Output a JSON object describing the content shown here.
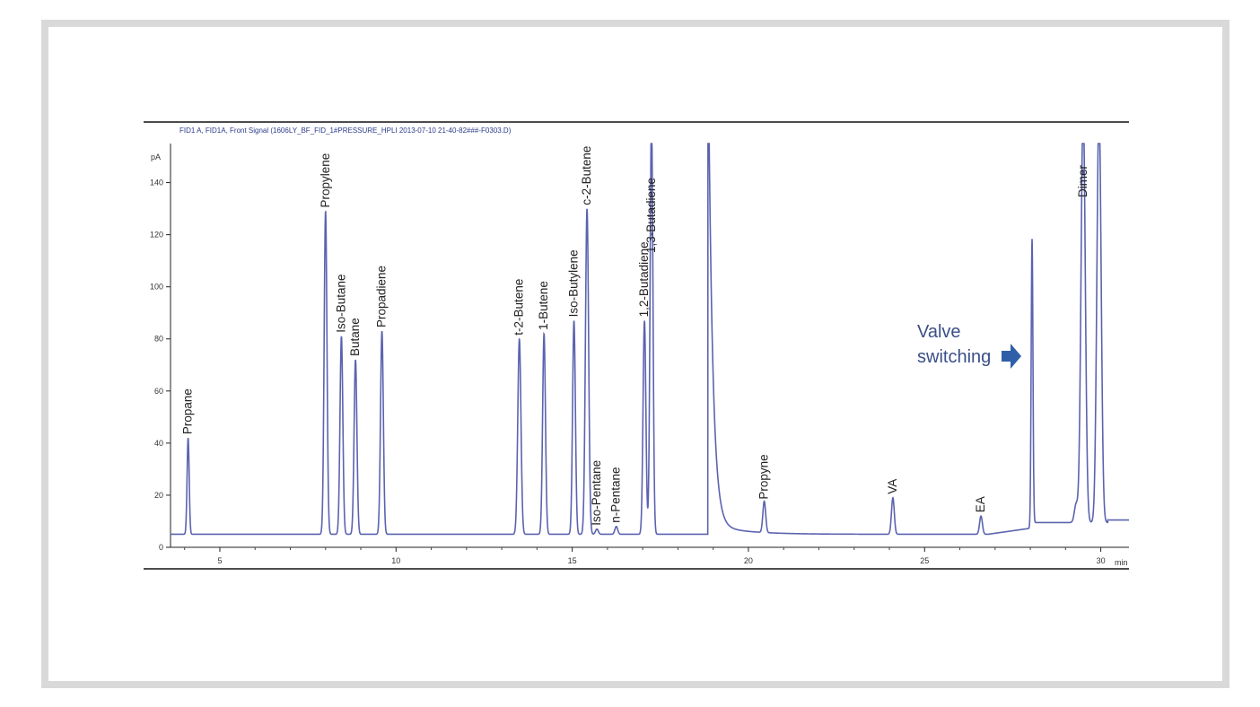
{
  "chart_data": {
    "type": "line",
    "header": "FID1 A, FID1A, Front Signal (1606LY_BF_FID_1#PRESSURE_HPLI 2013-07-10 21-40-82###-F0303.D)",
    "ylabel": "pA",
    "xlabel": "min",
    "xlim": [
      3.6,
      30.8
    ],
    "ylim": [
      0,
      155
    ],
    "x_ticks": [
      5,
      10,
      15,
      20,
      25,
      30
    ],
    "y_ticks": [
      0,
      20,
      40,
      60,
      80,
      100,
      120,
      140
    ],
    "baseline": 5,
    "series_color": "#5b63b0",
    "peaks": [
      {
        "label": "Propane",
        "x": 4.1,
        "height": 37,
        "width": 0.03
      },
      {
        "label": "Propylene",
        "x": 8.0,
        "height": 124,
        "width": 0.04
      },
      {
        "label": "Iso-Butane",
        "x": 8.45,
        "height": 76,
        "width": 0.04
      },
      {
        "label": "Butane",
        "x": 8.85,
        "height": 67,
        "width": 0.04
      },
      {
        "label": "Propadiene",
        "x": 9.6,
        "height": 78,
        "width": 0.04
      },
      {
        "label": "t-2-Butene",
        "x": 13.5,
        "height": 75,
        "width": 0.045
      },
      {
        "label": "1-Butene",
        "x": 14.2,
        "height": 77,
        "width": 0.04
      },
      {
        "label": "Iso-Butylene",
        "x": 15.05,
        "height": 82,
        "width": 0.04
      },
      {
        "label": "c-2-Butene",
        "x": 15.42,
        "height": 125,
        "width": 0.045
      },
      {
        "label": "Iso-Pentane",
        "x": 15.7,
        "height": 2,
        "width": 0.04
      },
      {
        "label": "n-Pentane",
        "x": 16.25,
        "height": 3,
        "width": 0.04
      },
      {
        "label": "1,2-Butadiene",
        "x": 17.05,
        "height": 82,
        "width": 0.04
      },
      {
        "label": "1,3-Butadiene",
        "x": 17.25,
        "height": 160,
        "width": 0.04
      },
      {
        "label": "Propyne",
        "x": 20.45,
        "height": 12,
        "width": 0.04
      },
      {
        "label": "VA",
        "x": 24.1,
        "height": 14,
        "width": 0.04
      },
      {
        "label": "EA",
        "x": 26.6,
        "height": 7,
        "width": 0.04
      },
      {
        "label": "",
        "x": 28.05,
        "height": 111,
        "width": 0.025
      },
      {
        "label": "",
        "x": 29.3,
        "height": 7,
        "width": 0.05
      },
      {
        "label": "Dimer",
        "x": 29.5,
        "height": 160,
        "width": 0.06
      },
      {
        "label": "",
        "x": 29.95,
        "height": 160,
        "width": 0.06
      }
    ],
    "annotation": {
      "line1": "Valve",
      "line2": "switching"
    }
  }
}
